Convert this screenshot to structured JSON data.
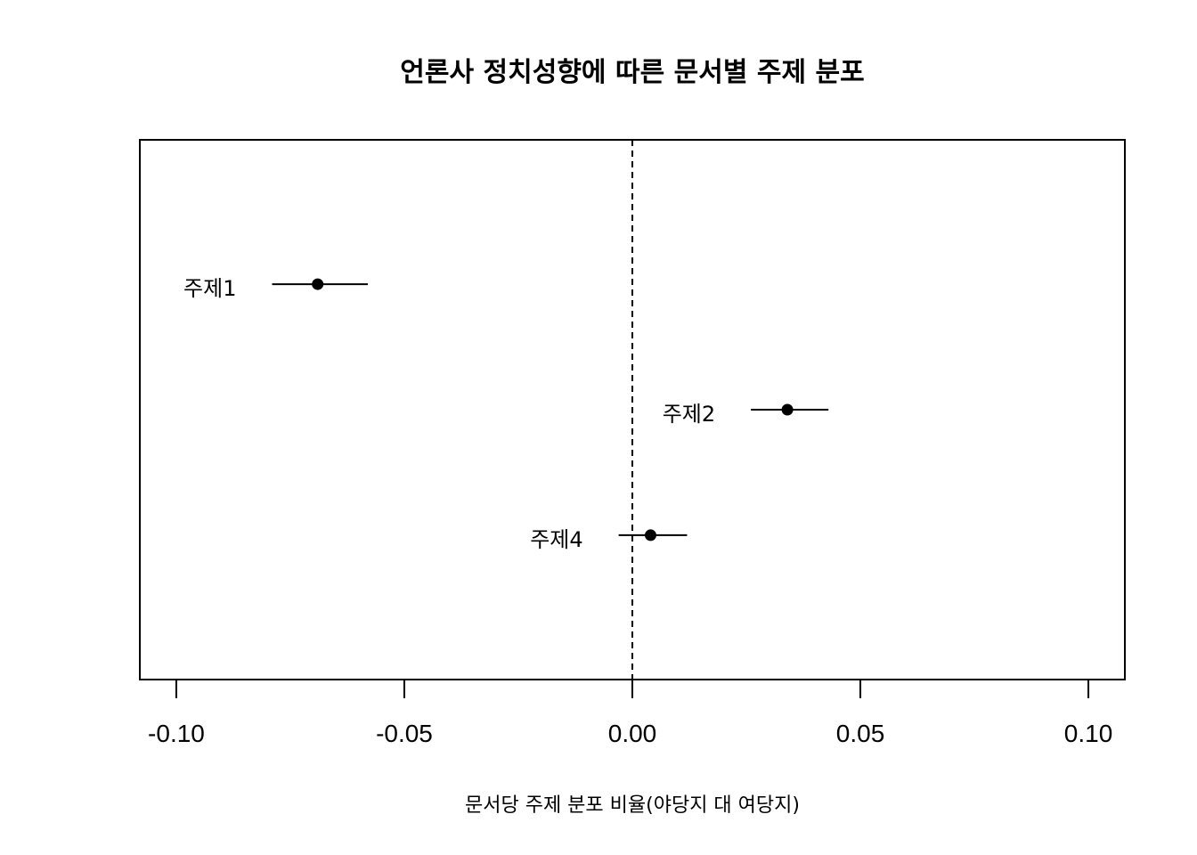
{
  "chart_data": {
    "type": "scatter",
    "title": "언론사 정치성향에 따른 문서별 주제 분포",
    "xlabel": "문서당 주제 분포 비율(야당지 대 여당지)",
    "ylabel": "",
    "xlim": [
      -0.108,
      0.108
    ],
    "ylim": [
      0.25,
      4.55
    ],
    "xticks": [
      -0.1,
      -0.05,
      0.0,
      0.05,
      0.1
    ],
    "xtick_labels": [
      "-0.10",
      "-0.05",
      "0.00",
      "0.05",
      "0.10"
    ],
    "reference_line": {
      "x": 0,
      "style": "dashed"
    },
    "grid": false,
    "legend": "none",
    "points": [
      {
        "label": "주제1",
        "x": -0.069,
        "y": 3.4,
        "lower": -0.079,
        "upper": -0.058
      },
      {
        "label": "주제2",
        "x": 0.034,
        "y": 2.4,
        "lower": 0.026,
        "upper": 0.043
      },
      {
        "label": "주제4",
        "x": 0.004,
        "y": 1.4,
        "lower": -0.003,
        "upper": 0.012
      }
    ],
    "colors": {
      "points": "#000000",
      "frame": "#000000"
    }
  }
}
